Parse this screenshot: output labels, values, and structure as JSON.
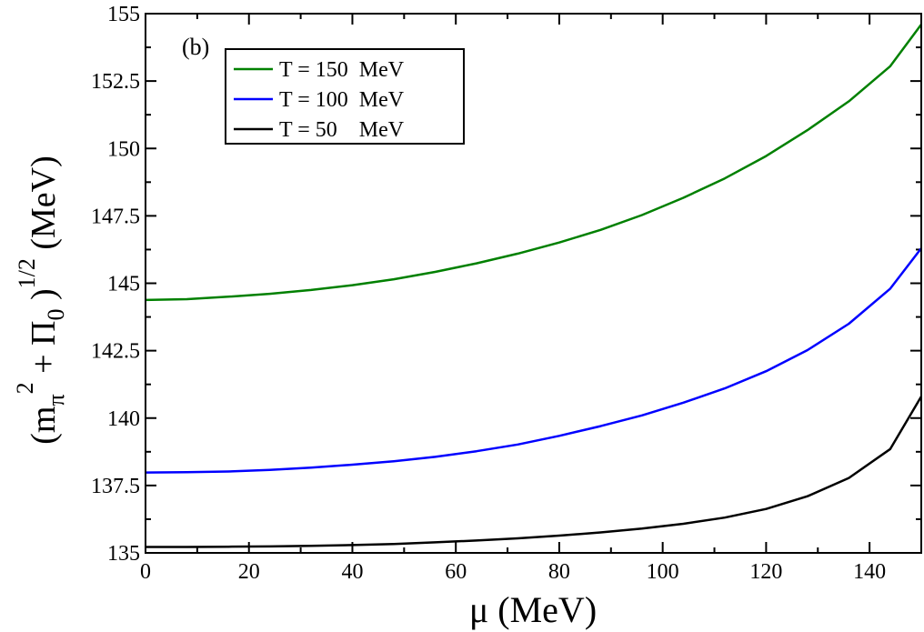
{
  "chart_data": {
    "type": "line",
    "panel_label": "(b)",
    "xlabel": "μ  (MeV)",
    "ylabel": {
      "open": "(m",
      "sub1": "π",
      "sup1": "2",
      "mid": " + Π",
      "sub2": "0",
      "close": " )",
      "sup2": "1/2",
      "unit": "  (MeV)"
    },
    "xlim": [
      0,
      150
    ],
    "ylim": [
      135,
      155
    ],
    "xticks": [
      0,
      20,
      40,
      60,
      80,
      100,
      120,
      140
    ],
    "xtick_labels": [
      "0",
      "20",
      "40",
      "60",
      "80",
      "100",
      "120",
      "140"
    ],
    "yticks": [
      135,
      137.5,
      140,
      142.5,
      145,
      147.5,
      150,
      152.5,
      155
    ],
    "ytick_labels": [
      "135",
      "137.5",
      "140",
      "142.5",
      "145",
      "147.5",
      "150",
      "152.5",
      "155"
    ],
    "legend_position": "top-left",
    "x": [
      0,
      8,
      16,
      24,
      32,
      40,
      48,
      56,
      64,
      72,
      80,
      88,
      96,
      104,
      112,
      120,
      128,
      136,
      144,
      150
    ],
    "series": [
      {
        "name": "T = 150  MeV",
        "color": "#008000",
        "values": [
          144.38,
          144.41,
          144.5,
          144.61,
          144.75,
          144.93,
          145.15,
          145.42,
          145.74,
          146.1,
          146.51,
          146.98,
          147.53,
          148.17,
          148.89,
          149.72,
          150.68,
          151.75,
          153.05,
          154.6
        ]
      },
      {
        "name": "T = 100  MeV",
        "color": "#0000ff",
        "values": [
          137.98,
          137.99,
          138.02,
          138.08,
          138.16,
          138.27,
          138.4,
          138.56,
          138.77,
          139.02,
          139.34,
          139.7,
          140.1,
          140.57,
          141.1,
          141.74,
          142.52,
          143.5,
          144.8,
          146.3
        ]
      },
      {
        "name": "T = 50    MeV",
        "color": "#000000",
        "values": [
          135.22,
          135.22,
          135.23,
          135.24,
          135.26,
          135.29,
          135.33,
          135.39,
          135.46,
          135.54,
          135.64,
          135.76,
          135.9,
          136.08,
          136.31,
          136.63,
          137.1,
          137.78,
          138.85,
          140.8
        ]
      }
    ]
  }
}
